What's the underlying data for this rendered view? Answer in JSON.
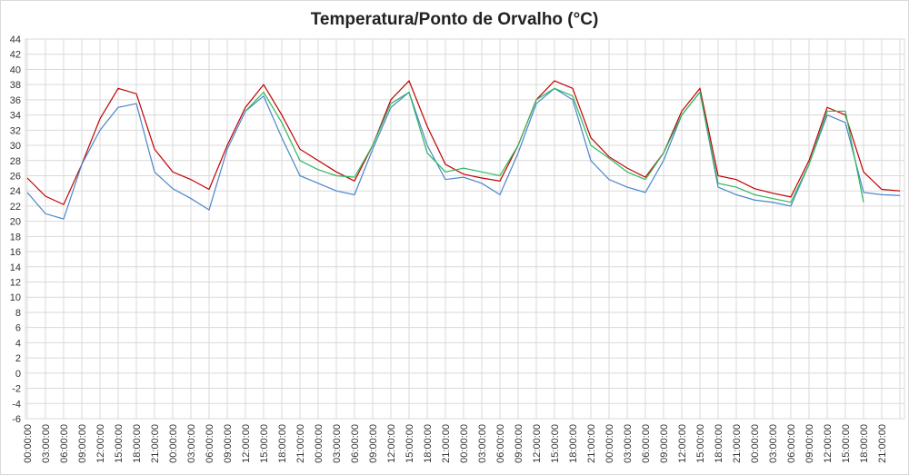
{
  "chart_data": {
    "type": "line",
    "title": "Temperatura/Ponto de Orvalho (°C)",
    "categories": [
      "00:00:00",
      "03:00:00",
      "06:00:00",
      "09:00:00",
      "12:00:00",
      "15:00:00",
      "18:00:00",
      "21:00:00",
      "00:00:00",
      "03:00:00",
      "06:00:00",
      "09:00:00",
      "12:00:00",
      "15:00:00",
      "18:00:00",
      "21:00:00",
      "00:00:00",
      "03:00:00",
      "06:00:00",
      "09:00:00",
      "12:00:00",
      "15:00:00",
      "18:00:00",
      "21:00:00",
      "00:00:00",
      "03:00:00",
      "06:00:00",
      "09:00:00",
      "12:00:00",
      "15:00:00",
      "18:00:00",
      "21:00:00",
      "00:00:00",
      "03:00:00",
      "06:00:00",
      "09:00:00",
      "12:00:00",
      "15:00:00",
      "18:00:00",
      "21:00:00",
      "00:00:00",
      "03:00:00",
      "06:00:00",
      "09:00:00",
      "12:00:00",
      "15:00:00",
      "18:00:00",
      "21:00:00",
      null
    ],
    "series": [
      {
        "color": "#c00000",
        "values": [
          25.7,
          23.3,
          22.2,
          27.5,
          33.5,
          37.5,
          36.8,
          29.5,
          26.5,
          25.5,
          24.2,
          30,
          35,
          38,
          34,
          29.5,
          28,
          26.5,
          25.3,
          30,
          36,
          38.5,
          32.5,
          27.5,
          26.2,
          25.7,
          25.3,
          30,
          36,
          38.5,
          37.5,
          31,
          28.5,
          27,
          25.8,
          29,
          34.5,
          37.5,
          26,
          25.5,
          24.3,
          23.7,
          23.2,
          28,
          35,
          34,
          26.5,
          24.2,
          24
        ]
      },
      {
        "color": "#4a86c8",
        "values": [
          23.8,
          21,
          20.3,
          27.5,
          32,
          35,
          35.5,
          26.5,
          24.3,
          23,
          21.5,
          29.5,
          34.5,
          36.5,
          31,
          26,
          25,
          24,
          23.5,
          29.5,
          35,
          37,
          30,
          25.5,
          25.8,
          25,
          23.5,
          29,
          35.5,
          37.5,
          36,
          28,
          25.5,
          24.5,
          23.8,
          28,
          34,
          37,
          24.5,
          23.5,
          22.8,
          22.5,
          22,
          27.5,
          34,
          33,
          23.8,
          23.5,
          23.4
        ]
      },
      {
        "color": "#2eb85c",
        "values": [
          null,
          null,
          null,
          null,
          null,
          null,
          null,
          null,
          null,
          null,
          null,
          null,
          34.5,
          37,
          33,
          28,
          26.8,
          26,
          25.8,
          30,
          35.5,
          37,
          29,
          26.5,
          27,
          26.5,
          26,
          30,
          36,
          37.5,
          36.5,
          30,
          28.3,
          26.5,
          25.5,
          29,
          34,
          37,
          25,
          24.5,
          23.5,
          23,
          22.5,
          27.5,
          34.5,
          34.5,
          22.5,
          null,
          null
        ]
      }
    ],
    "ylim": [
      -6,
      44
    ],
    "yticks": [
      -6,
      -4,
      -2,
      0,
      2,
      4,
      6,
      8,
      10,
      12,
      14,
      16,
      18,
      20,
      22,
      24,
      26,
      28,
      30,
      32,
      34,
      36,
      38,
      40,
      42,
      44
    ],
    "grid": true
  }
}
